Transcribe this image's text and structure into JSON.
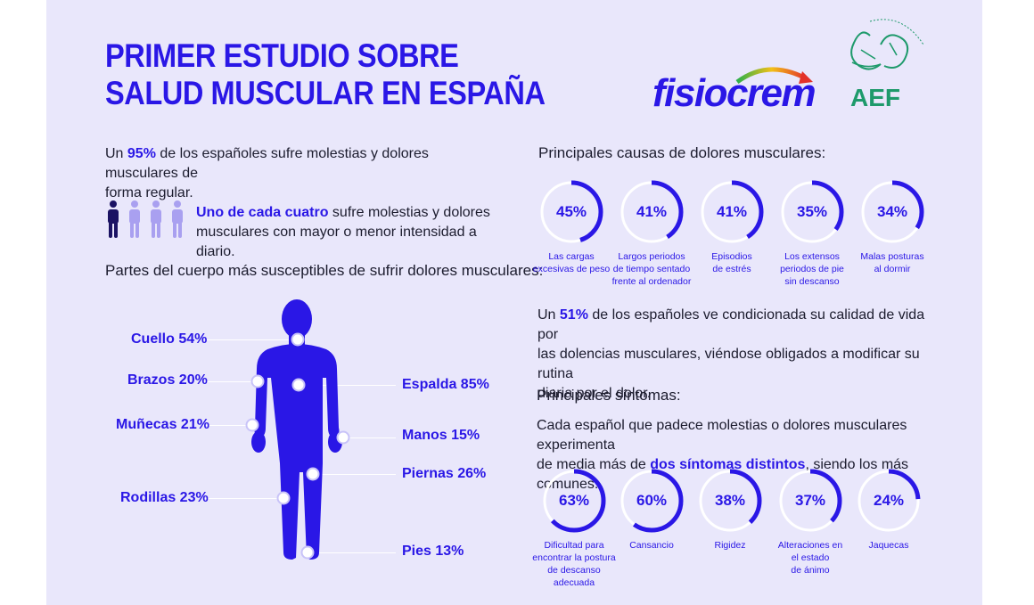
{
  "title": {
    "line1": "PRIMER ESTUDIO SOBRE",
    "line2": "SALUD MUSCULAR EN ESPAÑA"
  },
  "logos": {
    "fisiocrem": "fisiocrem",
    "aef": "AEF"
  },
  "stat95": {
    "pre": "Un ",
    "highlight": "95%",
    "post": " de los españoles sufre molestias y dolores musculares de",
    "line2": "forma regular."
  },
  "quarter": {
    "highlight": "Uno de cada cuatro",
    "post": " sufre molestias y dolores",
    "line2": "musculares con mayor o menor intensidad a diario."
  },
  "body_heading": "Partes del cuerpo más susceptibles de sufrir dolores musculares:",
  "body_parts": {
    "cuello": "Cuello 54%",
    "brazos": "Brazos 20%",
    "munecas": "Muñecas 21%",
    "rodillas": "Rodillas 23%",
    "espalda": "Espalda 85%",
    "manos": "Manos 15%",
    "piernas": "Piernas 26%",
    "pies": "Pies 13%"
  },
  "causes_heading": "Principales causas de dolores musculares:",
  "causes": [
    {
      "value": 45,
      "label": "45%",
      "caption": [
        "Las cargas",
        "excesivas de peso"
      ]
    },
    {
      "value": 41,
      "label": "41%",
      "caption": [
        "Largos periodos",
        "de tiempo sentado",
        "frente al ordenador"
      ]
    },
    {
      "value": 41,
      "label": "41%",
      "caption": [
        "Episodios",
        "de estrés"
      ]
    },
    {
      "value": 35,
      "label": "35%",
      "caption": [
        "Los extensos",
        "periodos de pie",
        "sin descanso"
      ]
    },
    {
      "value": 34,
      "label": "34%",
      "caption": [
        "Malas posturas",
        "al dormir"
      ]
    }
  ],
  "stat51": {
    "pre": "Un ",
    "highlight": "51%",
    "post": " de los españoles ve condicionada su calidad de vida por",
    "line2": "las dolencias musculares, viéndose obligados a modificar su rutina",
    "line3": "diaria por el dolor."
  },
  "symptoms_heading": "Principales síntomas:",
  "symptoms_intro": {
    "line1": "Cada español que padece molestias o dolores musculares experimenta",
    "pre2": "de media más de ",
    "highlight": "dos síntomas distintos",
    "post2": ", siendo los más comunes:"
  },
  "symptoms": [
    {
      "value": 63,
      "label": "63%",
      "caption": [
        "Dificultad para",
        "encontrar la postura",
        "de descanso adecuada"
      ]
    },
    {
      "value": 60,
      "label": "60%",
      "caption": [
        "Cansancio"
      ]
    },
    {
      "value": 38,
      "label": "38%",
      "caption": [
        "Rigidez"
      ]
    },
    {
      "value": 37,
      "label": "37%",
      "caption": [
        "Alteraciones en",
        "el estado",
        "de ánimo"
      ]
    },
    {
      "value": 24,
      "label": "24%",
      "caption": [
        "Jaquecas"
      ]
    }
  ],
  "colors": {
    "accent": "#2a17e6",
    "ring_track": "#ffffff",
    "background": "#e9e7fb"
  }
}
